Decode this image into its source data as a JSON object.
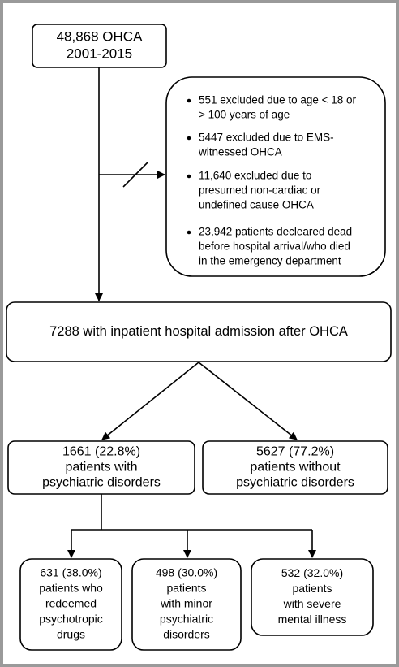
{
  "nodes": [
    {
      "lines": [
        "48,868 OHCA",
        "2001-2015"
      ]
    },
    {
      "lines": [
        "7288 with inpatient hospital admission after OHCA"
      ]
    },
    {
      "lines": [
        "1661 (22.8%)",
        "patients with",
        "psychiatric disorders"
      ]
    },
    {
      "lines": [
        "5627 (77.2%)",
        "patients without",
        "psychiatric disorders"
      ]
    },
    {
      "lines": [
        "631 (38.0%)",
        "patients who",
        "redeemed",
        "psychotropic",
        "drugs"
      ]
    },
    {
      "lines": [
        "498 (30.0%)",
        "patients",
        "with minor",
        "psychiatric",
        "disorders"
      ]
    },
    {
      "lines": [
        "532 (32.0%)",
        "patients",
        "with severe",
        "mental illness"
      ]
    }
  ],
  "exclusions": [
    [
      "551 excluded due to age < 18 or",
      "> 100 years of age"
    ],
    [
      "5447 excluded due to EMS-",
      "witnessed OHCA"
    ],
    [
      "11,640 excluded due to",
      "presumed non-cardiac or",
      "undefined cause OHCA"
    ],
    [
      "23,942 patients decleared dead",
      "before hospital arrival/who died",
      "in the emergency department"
    ]
  ]
}
